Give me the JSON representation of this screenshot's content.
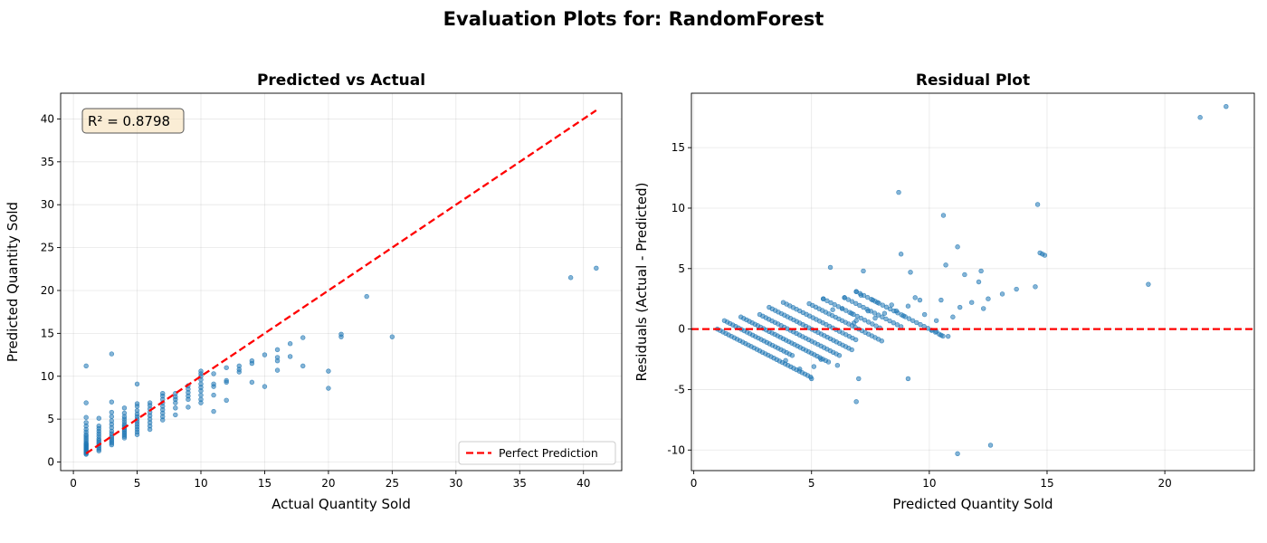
{
  "suptitle": "Evaluation Plots for: RandomForest",
  "chart_data": [
    {
      "type": "scatter",
      "title": "Predicted vs Actual",
      "xlabel": "Actual Quantity Sold",
      "ylabel": "Predicted Quantity Sold",
      "xlim": [
        -1,
        43
      ],
      "ylim": [
        -1,
        43
      ],
      "xticks": [
        0,
        5,
        10,
        15,
        20,
        25,
        30,
        35,
        40
      ],
      "yticks": [
        0,
        5,
        10,
        15,
        20,
        25,
        30,
        35,
        40
      ],
      "grid": true,
      "annotation": "R² = 0.8798",
      "legend": {
        "placement": "lower-right",
        "entries": [
          "Perfect Prediction"
        ]
      },
      "reference_line": {
        "name": "Perfect Prediction",
        "color": "#ff0000",
        "style": "dashed",
        "x": [
          1,
          41
        ],
        "y": [
          1,
          41
        ]
      },
      "points": [
        [
          1,
          0.9
        ],
        [
          1,
          1.0
        ],
        [
          1,
          1.1
        ],
        [
          1,
          1.2
        ],
        [
          1,
          1.3
        ],
        [
          1,
          1.4
        ],
        [
          1,
          1.5
        ],
        [
          1,
          1.6
        ],
        [
          1,
          1.7
        ],
        [
          1,
          1.8
        ],
        [
          1,
          1.9
        ],
        [
          1,
          2.0
        ],
        [
          1,
          2.1
        ],
        [
          1,
          2.2
        ],
        [
          1,
          2.4
        ],
        [
          1,
          2.6
        ],
        [
          1,
          2.8
        ],
        [
          1,
          3.0
        ],
        [
          1,
          3.2
        ],
        [
          1,
          3.5
        ],
        [
          1,
          3.8
        ],
        [
          1,
          4.2
        ],
        [
          1,
          4.6
        ],
        [
          1,
          5.2
        ],
        [
          1,
          6.9
        ],
        [
          1,
          11.2
        ],
        [
          2,
          1.3
        ],
        [
          2,
          1.5
        ],
        [
          2,
          1.7
        ],
        [
          2,
          1.9
        ],
        [
          2,
          2.1
        ],
        [
          2,
          2.3
        ],
        [
          2,
          2.5
        ],
        [
          2,
          2.7
        ],
        [
          2,
          3.0
        ],
        [
          2,
          3.3
        ],
        [
          2,
          3.6
        ],
        [
          2,
          3.9
        ],
        [
          2,
          4.2
        ],
        [
          2,
          5.1
        ],
        [
          3,
          2.0
        ],
        [
          3,
          2.2
        ],
        [
          3,
          2.4
        ],
        [
          3,
          2.6
        ],
        [
          3,
          2.8
        ],
        [
          3,
          3.0
        ],
        [
          3,
          3.3
        ],
        [
          3,
          3.6
        ],
        [
          3,
          4.0
        ],
        [
          3,
          4.4
        ],
        [
          3,
          4.8
        ],
        [
          3,
          5.3
        ],
        [
          3,
          5.8
        ],
        [
          3,
          7.0
        ],
        [
          3,
          12.6
        ],
        [
          4,
          2.8
        ],
        [
          4,
          3.0
        ],
        [
          4,
          3.2
        ],
        [
          4,
          3.4
        ],
        [
          4,
          3.6
        ],
        [
          4,
          3.8
        ],
        [
          4,
          4.0
        ],
        [
          4,
          4.2
        ],
        [
          4,
          4.4
        ],
        [
          4,
          4.7
        ],
        [
          4,
          5.0
        ],
        [
          4,
          5.3
        ],
        [
          4,
          5.7
        ],
        [
          4,
          6.3
        ],
        [
          5,
          3.2
        ],
        [
          5,
          3.5
        ],
        [
          5,
          3.8
        ],
        [
          5,
          4.1
        ],
        [
          5,
          4.4
        ],
        [
          5,
          4.7
        ],
        [
          5,
          5.0
        ],
        [
          5,
          5.3
        ],
        [
          5,
          5.6
        ],
        [
          5,
          6.0
        ],
        [
          5,
          6.5
        ],
        [
          5,
          6.8
        ],
        [
          5,
          9.1
        ],
        [
          6,
          3.8
        ],
        [
          6,
          4.2
        ],
        [
          6,
          4.6
        ],
        [
          6,
          5.0
        ],
        [
          6,
          5.4
        ],
        [
          6,
          5.8
        ],
        [
          6,
          6.2
        ],
        [
          6,
          6.6
        ],
        [
          6,
          6.9
        ],
        [
          7,
          4.9
        ],
        [
          7,
          5.3
        ],
        [
          7,
          5.7
        ],
        [
          7,
          6.1
        ],
        [
          7,
          6.5
        ],
        [
          7,
          6.9
        ],
        [
          7,
          7.3
        ],
        [
          7,
          7.7
        ],
        [
          7,
          8.0
        ],
        [
          8,
          5.5
        ],
        [
          8,
          6.3
        ],
        [
          8,
          6.9
        ],
        [
          8,
          7.3
        ],
        [
          8,
          7.6
        ],
        [
          8,
          8.0
        ],
        [
          9,
          6.4
        ],
        [
          9,
          7.3
        ],
        [
          9,
          7.7
        ],
        [
          9,
          8.1
        ],
        [
          9,
          8.5
        ],
        [
          9,
          8.9
        ],
        [
          10,
          6.9
        ],
        [
          10,
          7.3
        ],
        [
          10,
          7.8
        ],
        [
          10,
          8.3
        ],
        [
          10,
          8.7
        ],
        [
          10,
          9.1
        ],
        [
          10,
          9.6
        ],
        [
          10,
          10.0
        ],
        [
          10,
          10.3
        ],
        [
          10,
          10.6
        ],
        [
          11,
          5.9
        ],
        [
          11,
          7.8
        ],
        [
          11,
          8.8
        ],
        [
          11,
          9.1
        ],
        [
          11,
          10.3
        ],
        [
          12,
          7.2
        ],
        [
          12,
          9.3
        ],
        [
          12,
          9.5
        ],
        [
          12,
          11.0
        ],
        [
          13,
          10.5
        ],
        [
          13,
          10.8
        ],
        [
          13,
          11.2
        ],
        [
          14,
          9.3
        ],
        [
          14,
          11.5
        ],
        [
          14,
          11.8
        ],
        [
          15,
          8.8
        ],
        [
          15,
          12.5
        ],
        [
          16,
          10.7
        ],
        [
          16,
          11.8
        ],
        [
          16,
          12.2
        ],
        [
          16,
          13.1
        ],
        [
          17,
          12.3
        ],
        [
          17,
          13.8
        ],
        [
          18,
          11.2
        ],
        [
          18,
          14.5
        ],
        [
          20,
          8.6
        ],
        [
          20,
          10.6
        ],
        [
          21,
          14.6
        ],
        [
          21,
          14.9
        ],
        [
          23,
          19.3
        ],
        [
          25,
          14.6
        ],
        [
          39,
          21.5
        ],
        [
          41,
          22.6
        ]
      ]
    },
    {
      "type": "scatter",
      "title": "Residual Plot",
      "xlabel": "Predicted Quantity Sold",
      "ylabel": "Residuals (Actual - Predicted)",
      "xlim": [
        -0.1,
        23.8
      ],
      "ylim": [
        -11.7,
        19.5
      ],
      "xticks": [
        0,
        5,
        10,
        15,
        20
      ],
      "yticks": [
        -10,
        -5,
        0,
        5,
        10,
        15
      ],
      "grid": true,
      "reference_line": {
        "color": "#ff0000",
        "style": "dashed",
        "y": 0
      },
      "bands": [
        {
          "actual": 1,
          "x_from": 1.0,
          "x_to": 5.0,
          "step": 0.12
        },
        {
          "actual": 2,
          "x_from": 1.3,
          "x_to": 4.2,
          "step": 0.12
        },
        {
          "actual": 3,
          "x_from": 2.0,
          "x_to": 5.8,
          "step": 0.12
        },
        {
          "actual": 4,
          "x_from": 2.8,
          "x_to": 6.3,
          "step": 0.13
        },
        {
          "actual": 5,
          "x_from": 3.2,
          "x_to": 6.8,
          "step": 0.13
        },
        {
          "actual": 6,
          "x_from": 3.8,
          "x_to": 6.9,
          "step": 0.14
        },
        {
          "actual": 7,
          "x_from": 4.9,
          "x_to": 8.0,
          "step": 0.14
        },
        {
          "actual": 8,
          "x_from": 5.5,
          "x_to": 8.0,
          "step": 0.16
        },
        {
          "actual": 9,
          "x_from": 6.4,
          "x_to": 8.9,
          "step": 0.16
        },
        {
          "actual": 10,
          "x_from": 6.9,
          "x_to": 10.6,
          "step": 0.16
        }
      ],
      "points": [
        [
          6.9,
          -6.0
        ],
        [
          5.0,
          -4.1
        ],
        [
          7.0,
          -4.1
        ],
        [
          9.1,
          -4.1
        ],
        [
          4.5,
          -3.3
        ],
        [
          5.4,
          -2.5
        ],
        [
          6.1,
          -3.0
        ],
        [
          5.1,
          -3.1
        ],
        [
          3.9,
          -2.6
        ],
        [
          7.2,
          4.8
        ],
        [
          5.8,
          5.1
        ],
        [
          8.7,
          11.3
        ],
        [
          8.8,
          6.2
        ],
        [
          9.2,
          4.7
        ],
        [
          6.9,
          3.1
        ],
        [
          7.6,
          2.4
        ],
        [
          6.4,
          2.6
        ],
        [
          5.5,
          2.5
        ],
        [
          7.8,
          2.2
        ],
        [
          6.7,
          1.3
        ],
        [
          9.4,
          2.6
        ],
        [
          9.6,
          2.4
        ],
        [
          7.1,
          2.8
        ],
        [
          8.4,
          2.0
        ],
        [
          8.6,
          1.5
        ],
        [
          9.1,
          1.9
        ],
        [
          5.9,
          1.6
        ],
        [
          6.3,
          1.7
        ],
        [
          7.4,
          1.5
        ],
        [
          8.1,
          1.3
        ],
        [
          6.9,
          0.7
        ],
        [
          8.9,
          1.1
        ],
        [
          7.7,
          0.9
        ],
        [
          6.8,
          0.5
        ],
        [
          10.3,
          0.7
        ],
        [
          10.5,
          -0.5
        ],
        [
          10.8,
          -0.6
        ],
        [
          11.0,
          1.0
        ],
        [
          9.8,
          1.2
        ],
        [
          10.1,
          -0.1
        ],
        [
          10.3,
          -0.2
        ],
        [
          10.6,
          9.4
        ],
        [
          11.2,
          6.8
        ],
        [
          10.7,
          5.3
        ],
        [
          11.5,
          4.5
        ],
        [
          12.2,
          4.8
        ],
        [
          12.1,
          3.9
        ],
        [
          11.8,
          2.2
        ],
        [
          11.3,
          1.8
        ],
        [
          12.5,
          2.5
        ],
        [
          13.1,
          2.9
        ],
        [
          13.7,
          3.3
        ],
        [
          12.3,
          1.7
        ],
        [
          14.5,
          3.5
        ],
        [
          14.6,
          10.3
        ],
        [
          14.7,
          6.3
        ],
        [
          14.9,
          6.1
        ],
        [
          14.8,
          6.2
        ],
        [
          10.5,
          2.4
        ],
        [
          11.2,
          -10.3
        ],
        [
          12.6,
          -9.6
        ],
        [
          19.3,
          3.7
        ],
        [
          21.5,
          17.5
        ],
        [
          22.6,
          18.4
        ]
      ]
    }
  ]
}
